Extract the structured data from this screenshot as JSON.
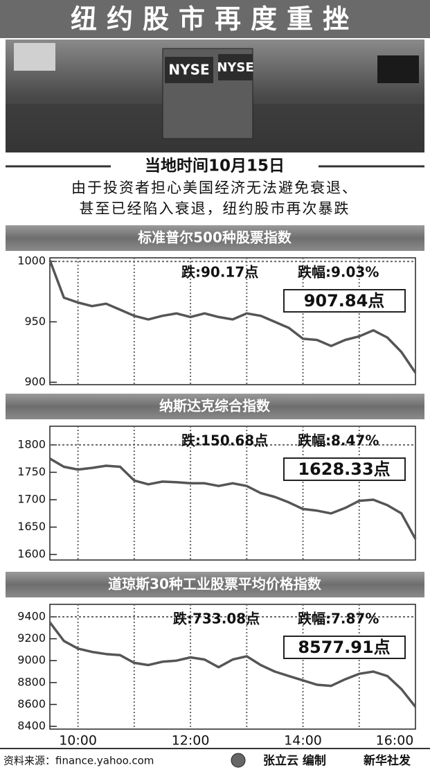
{
  "header": {
    "title": "纽约股市再度重挫"
  },
  "photo": {
    "signs": [
      "NYSE",
      "NYSE"
    ]
  },
  "dateline": "当地时间10月15日",
  "lead": [
    "由于投资者担心美国经济无法避免衰退、",
    "甚至已经陷入衰退，纽约股市再次暴跌"
  ],
  "chart_data": [
    {
      "type": "line",
      "title": "标准普尔500种股票指数",
      "x": [
        9.5,
        9.75,
        10,
        10.25,
        10.5,
        10.75,
        11,
        11.25,
        11.5,
        11.75,
        12,
        12.25,
        12.5,
        12.75,
        13,
        13.25,
        13.5,
        13.75,
        14,
        14.25,
        14.5,
        14.75,
        15,
        15.25,
        15.5,
        15.75,
        16
      ],
      "values": [
        1001,
        970,
        966,
        963,
        965,
        960,
        955,
        952,
        955,
        957,
        954,
        957,
        954,
        952,
        957,
        955,
        950,
        945,
        936,
        935,
        930,
        935,
        938,
        943,
        937,
        925,
        907.84
      ],
      "color": "#555555",
      "xlim": [
        9.5,
        16
      ],
      "xticks": [
        10,
        11,
        12,
        13,
        14,
        15
      ],
      "ylim": [
        898,
        1003
      ],
      "yticks": [
        900,
        950,
        1000
      ],
      "annotations": [
        "跌:90.17点",
        "跌幅:9.03%",
        "907.84点"
      ]
    },
    {
      "type": "line",
      "title": "纳斯达克综合指数",
      "x": [
        9.5,
        9.75,
        10,
        10.25,
        10.5,
        10.75,
        11,
        11.25,
        11.5,
        11.75,
        12,
        12.25,
        12.5,
        12.75,
        13,
        13.25,
        13.5,
        13.75,
        14,
        14.25,
        14.5,
        14.75,
        15,
        15.25,
        15.5,
        15.75,
        16
      ],
      "values": [
        1775,
        1760,
        1755,
        1758,
        1762,
        1760,
        1735,
        1728,
        1733,
        1732,
        1730,
        1730,
        1725,
        1730,
        1725,
        1712,
        1705,
        1695,
        1683,
        1680,
        1675,
        1685,
        1698,
        1700,
        1690,
        1675,
        1628.33
      ],
      "color": "#555555",
      "xlim": [
        9.5,
        16
      ],
      "xticks": [
        10,
        11,
        12,
        13,
        14,
        15
      ],
      "ylim": [
        1590,
        1834
      ],
      "yticks": [
        1600,
        1650,
        1700,
        1750,
        1800
      ],
      "annotations": [
        "跌:150.68点",
        "跌幅:8.47%",
        "1628.33点"
      ]
    },
    {
      "type": "line",
      "title": "道琼斯30种工业股票平均价格指数",
      "x": [
        9.5,
        9.75,
        10,
        10.25,
        10.5,
        10.75,
        11,
        11.25,
        11.5,
        11.75,
        12,
        12.25,
        12.5,
        12.75,
        13,
        13.25,
        13.5,
        13.75,
        14,
        14.25,
        14.5,
        14.75,
        15,
        15.25,
        15.5,
        15.75,
        16
      ],
      "values": [
        9350,
        9180,
        9110,
        9080,
        9060,
        9050,
        8980,
        8960,
        8990,
        9000,
        9030,
        9010,
        8940,
        9010,
        9040,
        8960,
        8900,
        8860,
        8820,
        8780,
        8770,
        8830,
        8880,
        8900,
        8860,
        8740,
        8577.91
      ],
      "color": "#555555",
      "xlim": [
        9.5,
        16
      ],
      "xticks": [
        {
          "value": 10,
          "label": "10:00"
        },
        11,
        {
          "value": 12,
          "label": "12:00"
        },
        13,
        {
          "value": 14,
          "label": "14:00"
        },
        15,
        {
          "value": 16,
          "label": "16:00"
        }
      ],
      "ylim": [
        8375,
        9514
      ],
      "yticks": [
        8400,
        8600,
        8800,
        9000,
        9200,
        9400
      ],
      "annotations": [
        "跌:733.08点",
        "跌幅:7.87%",
        "8577.91点"
      ]
    }
  ],
  "footer": {
    "source": "资料来源：finance.yahoo.com",
    "author": "张立云 编制",
    "agency": "新华社发"
  }
}
